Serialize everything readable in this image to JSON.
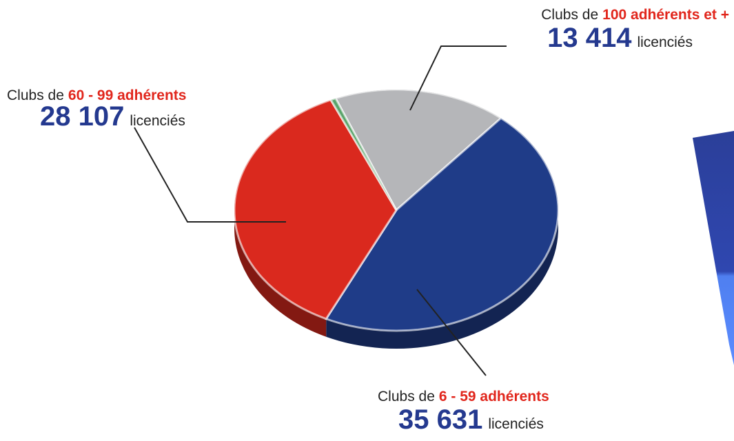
{
  "chart_data": {
    "type": "pie",
    "label_prefix": "Clubs de",
    "unit": "licenciés",
    "categories": [
      "100 adhérents et +",
      "6 - 59 adhérents",
      "60 - 99 adhérents",
      null
    ],
    "values": [
      13414,
      35631,
      28107,
      400
    ],
    "value_labels": [
      "13 414",
      "35 631",
      "28 107",
      null
    ],
    "colors": [
      "#b5b6b9",
      "#1f3c88",
      "#da291e",
      "#5aa36a"
    ]
  }
}
